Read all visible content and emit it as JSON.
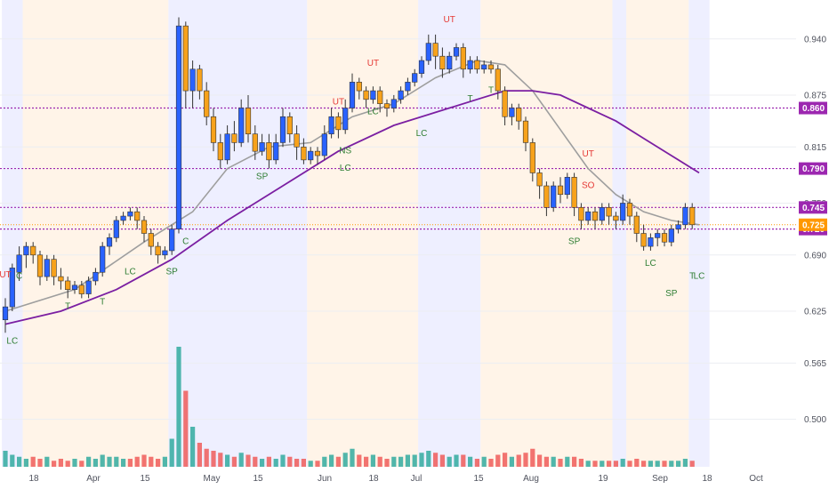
{
  "chart_data": {
    "type": "candlestick",
    "x_ticks": [
      "18",
      "Apr",
      "15",
      "May",
      "15",
      "Jun",
      "18",
      "Jul",
      "15",
      "Aug",
      "19",
      "Sep",
      "18",
      "Oct"
    ],
    "y_ticks": [
      0.5,
      0.565,
      0.625,
      0.69,
      0.75,
      0.815,
      0.875,
      0.94
    ],
    "y_range": [
      0.445,
      0.985
    ],
    "y_tick_labels": [
      "0.500",
      "0.565",
      "0.625",
      "0.690",
      "0.750",
      "0.815",
      "0.875",
      "0.940"
    ],
    "level_lines": [
      {
        "value": 0.86,
        "label": "0.860",
        "color": "#9c27b0"
      },
      {
        "value": 0.79,
        "label": "0.790",
        "color": "#9c27b0"
      },
      {
        "value": 0.745,
        "label": "0.745",
        "color": "#9c27b0"
      },
      {
        "value": 0.72,
        "label": "0.720",
        "color": "#9c27b0"
      }
    ],
    "last_price": {
      "value": 0.725,
      "label": "0.725",
      "color": "#ff9800"
    },
    "candles": [
      [
        0.615,
        0.63,
        0.6,
        0.64
      ],
      [
        0.63,
        0.675,
        0.625,
        0.68
      ],
      [
        0.67,
        0.69,
        0.66,
        0.7
      ],
      [
        0.69,
        0.7,
        0.675,
        0.705
      ],
      [
        0.7,
        0.69,
        0.68,
        0.705
      ],
      [
        0.69,
        0.665,
        0.655,
        0.695
      ],
      [
        0.665,
        0.685,
        0.66,
        0.69
      ],
      [
        0.685,
        0.665,
        0.655,
        0.69
      ],
      [
        0.665,
        0.66,
        0.65,
        0.675
      ],
      [
        0.66,
        0.65,
        0.64,
        0.665
      ],
      [
        0.65,
        0.655,
        0.645,
        0.66
      ],
      [
        0.655,
        0.645,
        0.64,
        0.66
      ],
      [
        0.645,
        0.66,
        0.64,
        0.665
      ],
      [
        0.66,
        0.67,
        0.655,
        0.675
      ],
      [
        0.67,
        0.7,
        0.665,
        0.705
      ],
      [
        0.7,
        0.71,
        0.69,
        0.715
      ],
      [
        0.71,
        0.73,
        0.705,
        0.735
      ],
      [
        0.73,
        0.735,
        0.725,
        0.74
      ],
      [
        0.735,
        0.74,
        0.73,
        0.745
      ],
      [
        0.74,
        0.73,
        0.72,
        0.745
      ],
      [
        0.73,
        0.715,
        0.705,
        0.735
      ],
      [
        0.715,
        0.7,
        0.69,
        0.72
      ],
      [
        0.7,
        0.69,
        0.68,
        0.705
      ],
      [
        0.69,
        0.695,
        0.685,
        0.7
      ],
      [
        0.695,
        0.72,
        0.69,
        0.725
      ],
      [
        0.72,
        0.955,
        0.715,
        0.965
      ],
      [
        0.955,
        0.88,
        0.86,
        0.96
      ],
      [
        0.88,
        0.905,
        0.86,
        0.915
      ],
      [
        0.905,
        0.88,
        0.87,
        0.91
      ],
      [
        0.88,
        0.85,
        0.84,
        0.89
      ],
      [
        0.85,
        0.82,
        0.81,
        0.86
      ],
      [
        0.82,
        0.8,
        0.79,
        0.83
      ],
      [
        0.8,
        0.83,
        0.795,
        0.84
      ],
      [
        0.83,
        0.82,
        0.81,
        0.845
      ],
      [
        0.82,
        0.86,
        0.815,
        0.87
      ],
      [
        0.86,
        0.83,
        0.82,
        0.875
      ],
      [
        0.83,
        0.81,
        0.8,
        0.84
      ],
      [
        0.81,
        0.82,
        0.805,
        0.83
      ],
      [
        0.82,
        0.8,
        0.79,
        0.83
      ],
      [
        0.8,
        0.82,
        0.795,
        0.83
      ],
      [
        0.82,
        0.85,
        0.815,
        0.86
      ],
      [
        0.85,
        0.83,
        0.82,
        0.855
      ],
      [
        0.83,
        0.815,
        0.8,
        0.84
      ],
      [
        0.815,
        0.8,
        0.795,
        0.825
      ],
      [
        0.8,
        0.81,
        0.795,
        0.815
      ],
      [
        0.81,
        0.805,
        0.795,
        0.815
      ],
      [
        0.805,
        0.83,
        0.8,
        0.84
      ],
      [
        0.83,
        0.85,
        0.825,
        0.86
      ],
      [
        0.85,
        0.835,
        0.825,
        0.855
      ],
      [
        0.835,
        0.86,
        0.83,
        0.87
      ],
      [
        0.86,
        0.89,
        0.855,
        0.9
      ],
      [
        0.89,
        0.88,
        0.87,
        0.895
      ],
      [
        0.88,
        0.87,
        0.86,
        0.885
      ],
      [
        0.87,
        0.88,
        0.865,
        0.885
      ],
      [
        0.88,
        0.865,
        0.855,
        0.885
      ],
      [
        0.865,
        0.86,
        0.85,
        0.87
      ],
      [
        0.86,
        0.87,
        0.855,
        0.875
      ],
      [
        0.87,
        0.88,
        0.865,
        0.885
      ],
      [
        0.88,
        0.89,
        0.875,
        0.895
      ],
      [
        0.89,
        0.9,
        0.885,
        0.905
      ],
      [
        0.9,
        0.915,
        0.895,
        0.92
      ],
      [
        0.915,
        0.935,
        0.91,
        0.945
      ],
      [
        0.935,
        0.92,
        0.905,
        0.945
      ],
      [
        0.92,
        0.905,
        0.895,
        0.93
      ],
      [
        0.905,
        0.92,
        0.9,
        0.925
      ],
      [
        0.92,
        0.93,
        0.915,
        0.935
      ],
      [
        0.93,
        0.905,
        0.895,
        0.935
      ],
      [
        0.905,
        0.915,
        0.9,
        0.92
      ],
      [
        0.915,
        0.905,
        0.9,
        0.92
      ],
      [
        0.905,
        0.91,
        0.9,
        0.915
      ],
      [
        0.91,
        0.905,
        0.9,
        0.915
      ],
      [
        0.905,
        0.88,
        0.87,
        0.91
      ],
      [
        0.88,
        0.85,
        0.84,
        0.885
      ],
      [
        0.85,
        0.86,
        0.84,
        0.865
      ],
      [
        0.86,
        0.845,
        0.835,
        0.865
      ],
      [
        0.845,
        0.82,
        0.81,
        0.85
      ],
      [
        0.82,
        0.785,
        0.775,
        0.825
      ],
      [
        0.785,
        0.77,
        0.755,
        0.79
      ],
      [
        0.77,
        0.745,
        0.735,
        0.775
      ],
      [
        0.745,
        0.77,
        0.74,
        0.775
      ],
      [
        0.77,
        0.76,
        0.75,
        0.78
      ],
      [
        0.76,
        0.78,
        0.755,
        0.785
      ],
      [
        0.78,
        0.745,
        0.735,
        0.785
      ],
      [
        0.745,
        0.73,
        0.72,
        0.75
      ],
      [
        0.73,
        0.74,
        0.725,
        0.745
      ],
      [
        0.74,
        0.73,
        0.72,
        0.745
      ],
      [
        0.73,
        0.745,
        0.725,
        0.75
      ],
      [
        0.745,
        0.735,
        0.725,
        0.75
      ],
      [
        0.735,
        0.73,
        0.72,
        0.74
      ],
      [
        0.73,
        0.75,
        0.725,
        0.76
      ],
      [
        0.75,
        0.735,
        0.725,
        0.755
      ],
      [
        0.735,
        0.715,
        0.705,
        0.74
      ],
      [
        0.715,
        0.7,
        0.695,
        0.725
      ],
      [
        0.7,
        0.71,
        0.695,
        0.715
      ],
      [
        0.71,
        0.715,
        0.7,
        0.72
      ],
      [
        0.715,
        0.705,
        0.7,
        0.72
      ],
      [
        0.705,
        0.72,
        0.7,
        0.725
      ],
      [
        0.72,
        0.725,
        0.715,
        0.73
      ],
      [
        0.725,
        0.745,
        0.72,
        0.75
      ],
      [
        0.745,
        0.725,
        0.72,
        0.75
      ]
    ],
    "ma_fast": [
      [
        0,
        0.625
      ],
      [
        10,
        0.65
      ],
      [
        20,
        0.705
      ],
      [
        27,
        0.74
      ],
      [
        32,
        0.79
      ],
      [
        38,
        0.815
      ],
      [
        44,
        0.82
      ],
      [
        50,
        0.85
      ],
      [
        56,
        0.865
      ],
      [
        62,
        0.895
      ],
      [
        68,
        0.915
      ],
      [
        72,
        0.91
      ],
      [
        76,
        0.88
      ],
      [
        80,
        0.835
      ],
      [
        84,
        0.79
      ],
      [
        88,
        0.76
      ],
      [
        92,
        0.74
      ],
      [
        96,
        0.73
      ],
      [
        100,
        0.725
      ]
    ],
    "ma_slow": [
      [
        0,
        0.61
      ],
      [
        8,
        0.625
      ],
      [
        16,
        0.65
      ],
      [
        24,
        0.685
      ],
      [
        32,
        0.73
      ],
      [
        40,
        0.77
      ],
      [
        48,
        0.81
      ],
      [
        56,
        0.84
      ],
      [
        62,
        0.855
      ],
      [
        68,
        0.87
      ],
      [
        72,
        0.88
      ],
      [
        76,
        0.88
      ],
      [
        80,
        0.875
      ],
      [
        84,
        0.86
      ],
      [
        88,
        0.845
      ],
      [
        92,
        0.825
      ],
      [
        96,
        0.805
      ],
      [
        100,
        0.785
      ]
    ],
    "volume": [
      [
        8,
        0
      ],
      [
        6,
        0
      ],
      [
        5,
        0
      ],
      [
        4,
        0
      ],
      [
        5,
        1
      ],
      [
        4,
        1
      ],
      [
        5,
        0
      ],
      [
        3,
        1
      ],
      [
        4,
        1
      ],
      [
        3,
        1
      ],
      [
        4,
        0
      ],
      [
        3,
        1
      ],
      [
        5,
        0
      ],
      [
        4,
        0
      ],
      [
        6,
        0
      ],
      [
        5,
        0
      ],
      [
        5,
        0
      ],
      [
        4,
        0
      ],
      [
        4,
        1
      ],
      [
        5,
        1
      ],
      [
        6,
        1
      ],
      [
        5,
        1
      ],
      [
        4,
        1
      ],
      [
        5,
        0
      ],
      [
        14,
        0
      ],
      [
        60,
        0
      ],
      [
        38,
        1
      ],
      [
        20,
        0
      ],
      [
        12,
        1
      ],
      [
        9,
        1
      ],
      [
        8,
        1
      ],
      [
        7,
        1
      ],
      [
        6,
        0
      ],
      [
        5,
        1
      ],
      [
        7,
        0
      ],
      [
        6,
        1
      ],
      [
        5,
        1
      ],
      [
        4,
        0
      ],
      [
        5,
        1
      ],
      [
        4,
        0
      ],
      [
        6,
        0
      ],
      [
        5,
        1
      ],
      [
        4,
        1
      ],
      [
        4,
        1
      ],
      [
        3,
        0
      ],
      [
        3,
        1
      ],
      [
        5,
        0
      ],
      [
        6,
        0
      ],
      [
        5,
        1
      ],
      [
        7,
        0
      ],
      [
        9,
        0
      ],
      [
        6,
        1
      ],
      [
        5,
        1
      ],
      [
        6,
        0
      ],
      [
        5,
        1
      ],
      [
        4,
        1
      ],
      [
        5,
        0
      ],
      [
        5,
        0
      ],
      [
        6,
        0
      ],
      [
        6,
        0
      ],
      [
        7,
        0
      ],
      [
        8,
        0
      ],
      [
        7,
        1
      ],
      [
        6,
        1
      ],
      [
        5,
        0
      ],
      [
        6,
        0
      ],
      [
        6,
        1
      ],
      [
        5,
        0
      ],
      [
        4,
        1
      ],
      [
        5,
        0
      ],
      [
        4,
        1
      ],
      [
        6,
        1
      ],
      [
        7,
        1
      ],
      [
        5,
        0
      ],
      [
        6,
        1
      ],
      [
        7,
        1
      ],
      [
        9,
        1
      ],
      [
        6,
        1
      ],
      [
        5,
        1
      ],
      [
        5,
        0
      ],
      [
        4,
        1
      ],
      [
        5,
        0
      ],
      [
        5,
        1
      ],
      [
        4,
        1
      ],
      [
        3,
        0
      ],
      [
        3,
        1
      ],
      [
        3,
        0
      ],
      [
        3,
        1
      ],
      [
        3,
        1
      ],
      [
        4,
        0
      ],
      [
        3,
        1
      ],
      [
        4,
        1
      ],
      [
        3,
        1
      ],
      [
        3,
        0
      ],
      [
        3,
        0
      ],
      [
        3,
        1
      ],
      [
        3,
        0
      ],
      [
        3,
        0
      ],
      [
        4,
        0
      ],
      [
        3,
        1
      ]
    ],
    "annotations": [
      {
        "i": 0,
        "text": "UT",
        "pos": "above",
        "value": 0.66
      },
      {
        "i": 2,
        "text": "C",
        "pos": "below",
        "value": 0.675
      },
      {
        "i": 1,
        "text": "LC",
        "pos": "below",
        "value": 0.6
      },
      {
        "i": 9,
        "text": "T",
        "pos": "below",
        "value": 0.64
      },
      {
        "i": 14,
        "text": "T",
        "pos": "below",
        "value": 0.645
      },
      {
        "i": 18,
        "text": "LC",
        "pos": "below",
        "value": 0.68
      },
      {
        "i": 26,
        "text": "C",
        "pos": "below",
        "value": 0.715
      },
      {
        "i": 24,
        "text": "SP",
        "pos": "below",
        "value": 0.68
      },
      {
        "i": 37,
        "text": "SP",
        "pos": "below",
        "value": 0.79
      },
      {
        "i": 48,
        "text": "UT",
        "pos": "above",
        "value": 0.86
      },
      {
        "i": 49,
        "text": "NS",
        "pos": "below",
        "value": 0.82
      },
      {
        "i": 49,
        "text": "LC",
        "pos": "below",
        "value": 0.8
      },
      {
        "i": 53,
        "text": "UT",
        "pos": "above",
        "value": 0.905
      },
      {
        "i": 53,
        "text": "LC",
        "pos": "below",
        "value": 0.865
      },
      {
        "i": 60,
        "text": "LC",
        "pos": "below",
        "value": 0.84
      },
      {
        "i": 64,
        "text": "UT",
        "pos": "above",
        "value": 0.955
      },
      {
        "i": 67,
        "text": "T",
        "pos": "below",
        "value": 0.88
      },
      {
        "i": 70,
        "text": "T",
        "pos": "below",
        "value": 0.89
      },
      {
        "i": 84,
        "text": "UT",
        "pos": "above",
        "value": 0.8
      },
      {
        "i": 84,
        "text": "SO",
        "pos": "below",
        "value": 0.78
      },
      {
        "i": 82,
        "text": "SP",
        "pos": "below",
        "value": 0.715
      },
      {
        "i": 93,
        "text": "LC",
        "pos": "below",
        "value": 0.69
      },
      {
        "i": 96,
        "text": "SP",
        "pos": "below",
        "value": 0.655
      },
      {
        "i": 99,
        "text": "T",
        "pos": "below",
        "value": 0.675
      },
      {
        "i": 100,
        "text": "LC",
        "pos": "below",
        "value": 0.675
      }
    ],
    "grid": true
  },
  "colors": {
    "up_candle": "#2962ff",
    "down_candle": "#f7a21b",
    "ma_fast": "#9e9e9e",
    "ma_slow": "#7b1fa2",
    "level_line": "#9c27b0",
    "vol_up": "#26a69a",
    "vol_down": "#ef5350",
    "bg_blue": "#e8eaff",
    "bg_orange": "#fff0e0"
  }
}
